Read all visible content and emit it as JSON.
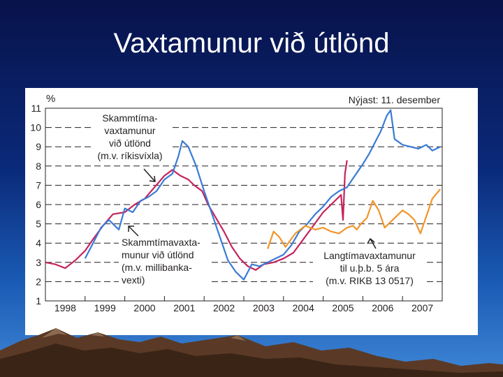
{
  "slide": {
    "title": "Vaxtamunur við útlönd"
  },
  "chart_data": {
    "type": "line",
    "unit_label": "%",
    "note": "Nýjast: 11. desember",
    "ylim": [
      1,
      11
    ],
    "yticks": [
      1,
      2,
      3,
      4,
      5,
      6,
      7,
      8,
      9,
      10,
      11
    ],
    "xlim": [
      1998.0,
      2008.0
    ],
    "x_tick_labels": [
      "1998",
      "1999",
      "2000",
      "2001",
      "2002",
      "2003",
      "2004",
      "2005",
      "2006",
      "2007"
    ],
    "grid": "dashed horizontal",
    "series": [
      {
        "color": "#c4245e",
        "x": [
          1998.0,
          1998.25,
          1998.5,
          1998.75,
          1999.0,
          1999.2,
          1999.45,
          1999.7,
          2000.0,
          2000.25,
          2000.5,
          2000.75,
          2001.0,
          2001.2,
          2001.4,
          2001.6,
          2001.75,
          2001.95,
          2002.1,
          2002.3,
          2002.5,
          2002.7,
          2002.9,
          2003.1,
          2003.3,
          2003.5,
          2003.75,
          2004.0,
          2004.25,
          2004.5,
          2004.75,
          2005.0,
          2005.15,
          2005.3,
          2005.45,
          2005.5,
          2005.55,
          2005.6
        ],
        "y": [
          3.0,
          2.9,
          2.7,
          3.1,
          3.6,
          4.2,
          4.9,
          5.5,
          5.6,
          6.0,
          6.3,
          6.9,
          7.5,
          7.8,
          7.5,
          7.3,
          7.0,
          6.7,
          6.0,
          5.3,
          4.6,
          3.8,
          3.2,
          2.8,
          2.6,
          2.9,
          3.0,
          3.2,
          3.5,
          4.2,
          4.9,
          5.6,
          5.9,
          6.2,
          6.5,
          5.2,
          7.6,
          8.3
        ]
      },
      {
        "color": "#3a7bd5",
        "x": [
          1999.0,
          1999.2,
          1999.4,
          1999.6,
          1999.85,
          2000.0,
          2000.2,
          2000.4,
          2000.6,
          2000.8,
          2001.0,
          2001.2,
          2001.35,
          2001.45,
          2001.6,
          2001.8,
          2002.0,
          2002.2,
          2002.4,
          2002.6,
          2002.8,
          2003.0,
          2003.2,
          2003.4,
          2003.7,
          2004.0,
          2004.2,
          2004.4,
          2004.6,
          2004.8,
          2005.0,
          2005.2,
          2005.4,
          2005.6,
          2005.8,
          2006.0,
          2006.15,
          2006.3,
          2006.45,
          2006.6,
          2006.7,
          2006.8,
          2007.0,
          2007.2,
          2007.4,
          2007.6,
          2007.75,
          2007.95
        ],
        "y": [
          3.2,
          4.0,
          4.8,
          5.2,
          4.7,
          5.8,
          5.6,
          6.2,
          6.4,
          6.7,
          7.3,
          7.6,
          8.5,
          9.3,
          9.0,
          8.0,
          6.7,
          5.5,
          4.3,
          3.1,
          2.5,
          2.1,
          2.9,
          2.8,
          3.1,
          3.4,
          3.9,
          4.6,
          5.0,
          5.5,
          5.9,
          6.4,
          6.7,
          6.9,
          7.5,
          8.1,
          8.6,
          9.2,
          9.8,
          10.6,
          10.9,
          9.4,
          9.1,
          9.0,
          8.9,
          9.1,
          8.8,
          9.0
        ]
      },
      {
        "color": "#f0952a",
        "x": [
          2003.6,
          2003.75,
          2003.9,
          2004.05,
          2004.3,
          2004.55,
          2004.8,
          2005.0,
          2005.2,
          2005.4,
          2005.6,
          2005.75,
          2005.85,
          2005.95,
          2006.1,
          2006.25,
          2006.4,
          2006.55,
          2006.7,
          2006.85,
          2007.0,
          2007.15,
          2007.3,
          2007.45,
          2007.6,
          2007.75,
          2007.95
        ],
        "y": [
          3.7,
          4.6,
          4.3,
          3.8,
          4.5,
          4.9,
          4.7,
          4.8,
          4.6,
          4.5,
          4.8,
          4.9,
          4.7,
          5.0,
          5.3,
          6.2,
          5.7,
          4.8,
          5.1,
          5.4,
          5.7,
          5.5,
          5.2,
          4.5,
          5.4,
          6.3,
          6.8
        ]
      }
    ],
    "annotations": [
      {
        "lines": [
          "Skammtíma-",
          "vaxtamunur",
          "við útlönd",
          "(m.v. ríkisvíxla)"
        ]
      },
      {
        "lines": [
          "Skammtímavaxta-",
          "munur við útlönd",
          "(m.v. millibanka-",
          "vexti)"
        ]
      },
      {
        "lines": [
          "Langtímavaxtamunur",
          "til u.þ.b. 5 ára",
          "(m.v. RIKB 13 0517)"
        ]
      }
    ]
  }
}
